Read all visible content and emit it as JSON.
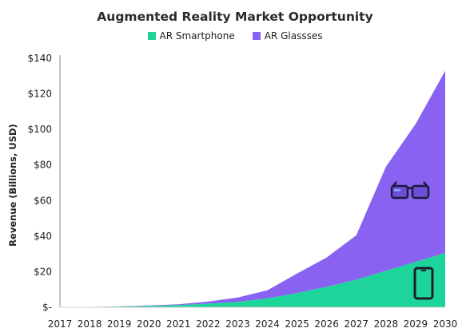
{
  "chart_data": {
    "type": "area",
    "stacked": true,
    "title": "Augmented Reality Market Opportunity",
    "ylabel": "Revenue (Billions, USD)",
    "xlabel": "",
    "x": [
      "2017",
      "2018",
      "2019",
      "2020",
      "2021",
      "2022",
      "2023",
      "2024",
      "2025",
      "2026",
      "2027",
      "2028",
      "2029",
      "2030"
    ],
    "y_ticks": [
      "$-",
      "$20",
      "$40",
      "$60",
      "$80",
      "$100",
      "$120",
      "$140"
    ],
    "ylim": [
      0,
      140
    ],
    "grid": false,
    "legend_position": "top",
    "series": [
      {
        "name": "AR Smartphone",
        "color": "#1dd59a",
        "values": [
          0.1,
          0.2,
          0.4,
          0.7,
          1.2,
          2,
          3,
          5,
          8,
          11.5,
          15.5,
          20.5,
          25.5,
          30.5
        ]
      },
      {
        "name": "AR Glassses",
        "color": "#8a62f2",
        "values": [
          0,
          0,
          0.1,
          0.3,
          0.5,
          1.2,
          2.5,
          4.5,
          11,
          16.5,
          25,
          58.5,
          77.5,
          102.5
        ]
      }
    ],
    "icons": [
      "glasses-icon",
      "smartphone-icon"
    ]
  }
}
